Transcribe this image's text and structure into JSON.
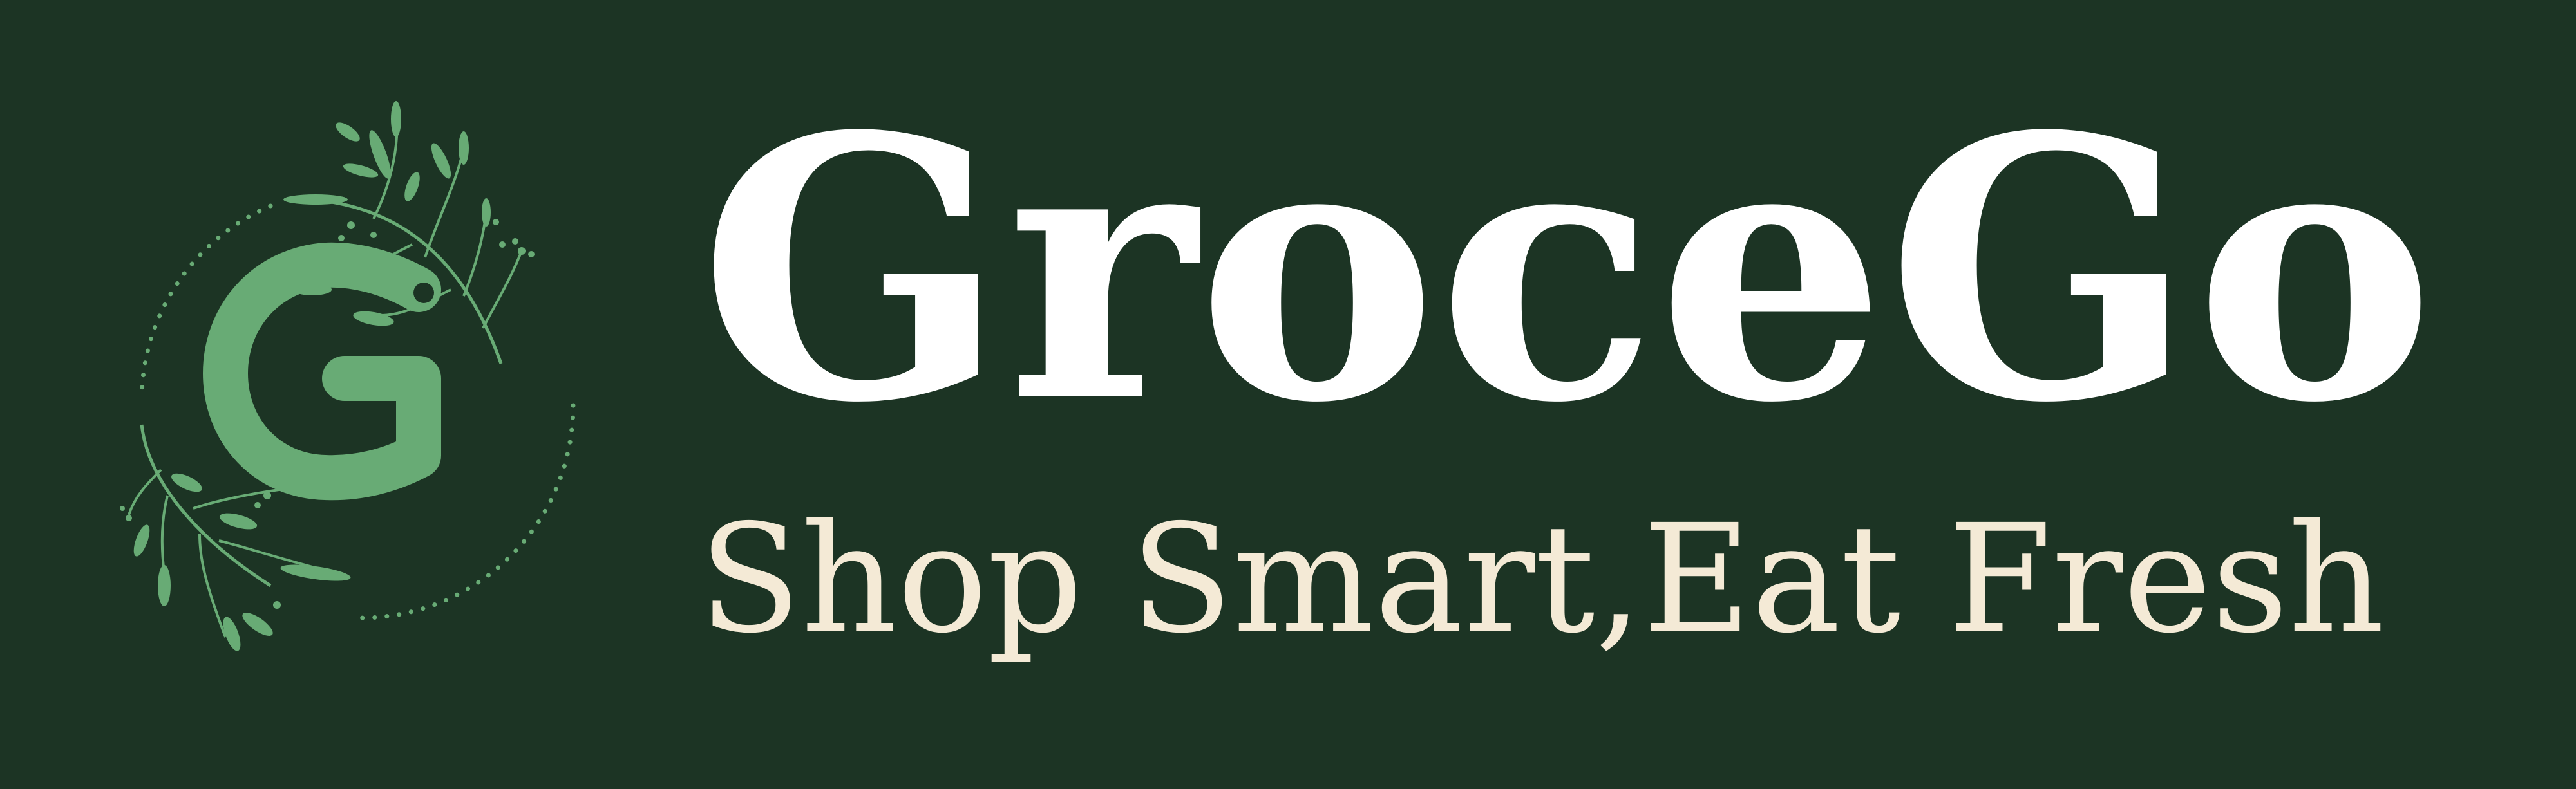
{
  "brand": {
    "name": "GroceGo",
    "tagline": "Shop Smart,Eat Fresh",
    "logo_letter": "G"
  },
  "colors": {
    "background": "#1c3424",
    "wordmark": "#ffffff",
    "tagline": "#f4ead6",
    "emblem_green": "#68ab75"
  },
  "icons": {
    "logo": "g-leaf-wreath-logo",
    "decoration": "leaf-branch-icon"
  }
}
